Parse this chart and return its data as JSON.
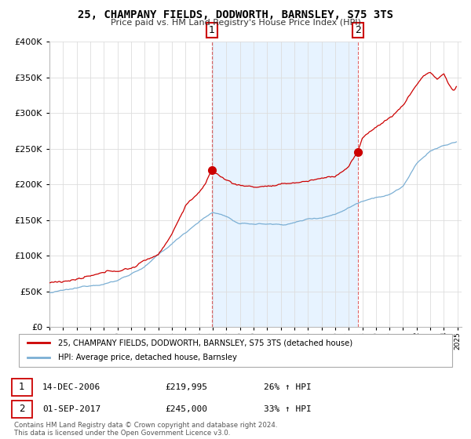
{
  "title": "25, CHAMPANY FIELDS, DODWORTH, BARNSLEY, S75 3TS",
  "subtitle": "Price paid vs. HM Land Registry's House Price Index (HPI)",
  "legend_label_red": "25, CHAMPANY FIELDS, DODWORTH, BARNSLEY, S75 3TS (detached house)",
  "legend_label_blue": "HPI: Average price, detached house, Barnsley",
  "annotation1_date": "14-DEC-2006",
  "annotation1_price": "£219,995",
  "annotation1_hpi": "26% ↑ HPI",
  "annotation2_date": "01-SEP-2017",
  "annotation2_price": "£245,000",
  "annotation2_hpi": "33% ↑ HPI",
  "footer": "Contains HM Land Registry data © Crown copyright and database right 2024.\nThis data is licensed under the Open Government Licence v3.0.",
  "ylim": [
    0,
    400000
  ],
  "yticks": [
    0,
    50000,
    100000,
    150000,
    200000,
    250000,
    300000,
    350000,
    400000
  ],
  "background_color": "#ffffff",
  "grid_color": "#dddddd",
  "red_color": "#cc0000",
  "blue_color": "#7bafd4",
  "shade_color": "#ddeeff",
  "marker1_year": 2006.95,
  "marker1_y": 219995,
  "marker2_year": 2017.67,
  "marker2_y": 245000,
  "xmin": 1995,
  "xmax": 2025.3
}
